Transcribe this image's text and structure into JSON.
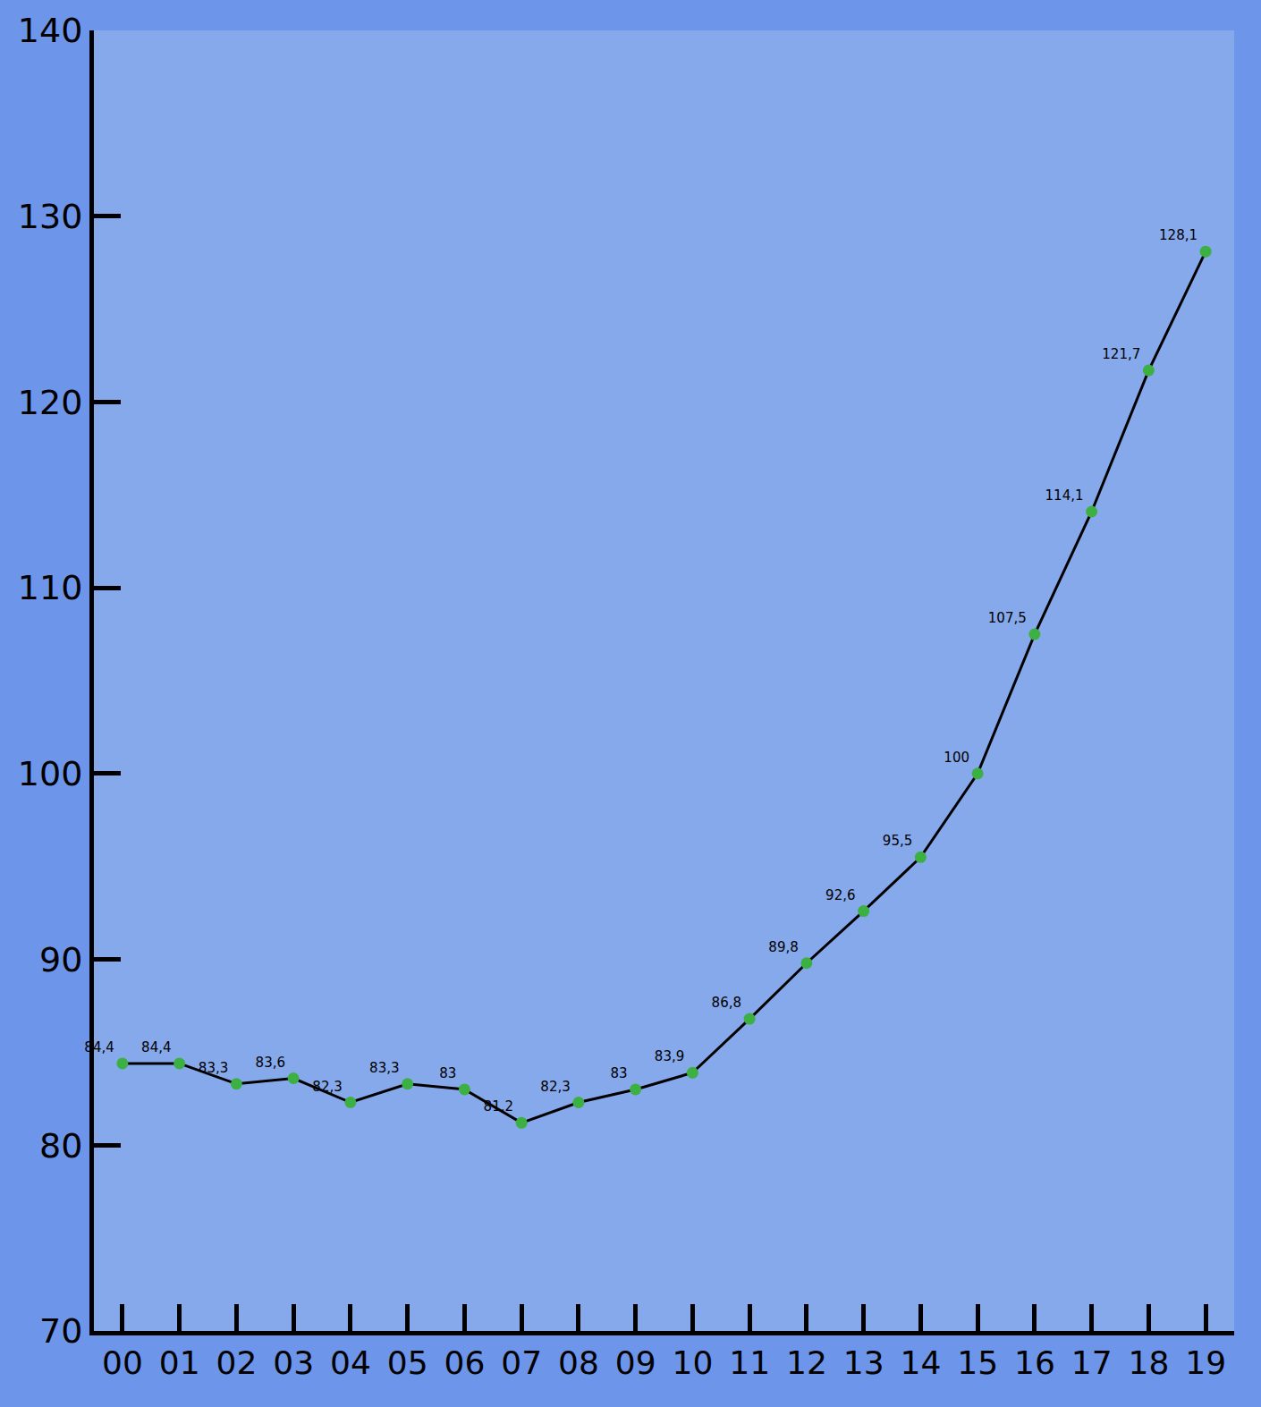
{
  "chart_data": {
    "type": "line",
    "categories": [
      "00",
      "01",
      "02",
      "03",
      "04",
      "05",
      "06",
      "07",
      "08",
      "09",
      "10",
      "11",
      "12",
      "13",
      "14",
      "15",
      "16",
      "17",
      "18",
      "19"
    ],
    "values": [
      84.4,
      84.4,
      83.3,
      83.6,
      82.3,
      83.3,
      83,
      81.2,
      82.3,
      83,
      83.9,
      86.8,
      89.8,
      92.6,
      95.5,
      100,
      107.5,
      114.1,
      121.7,
      128.1
    ],
    "value_labels": [
      "84,4",
      "84,4",
      "83,3",
      "83,6",
      "82,3",
      "83,3",
      "83",
      "81,2",
      "82,3",
      "83",
      "83,9",
      "86,8",
      "89,8",
      "92,6",
      "95,5",
      "100",
      "107,5",
      "114,1",
      "121,7",
      "128,1"
    ],
    "color": "#000000",
    "marker": "circle",
    "ylim": [
      70,
      140
    ],
    "yticks": [
      70,
      80,
      90,
      100,
      110,
      120,
      130,
      140
    ],
    "grid": false,
    "data_labels": true
  }
}
